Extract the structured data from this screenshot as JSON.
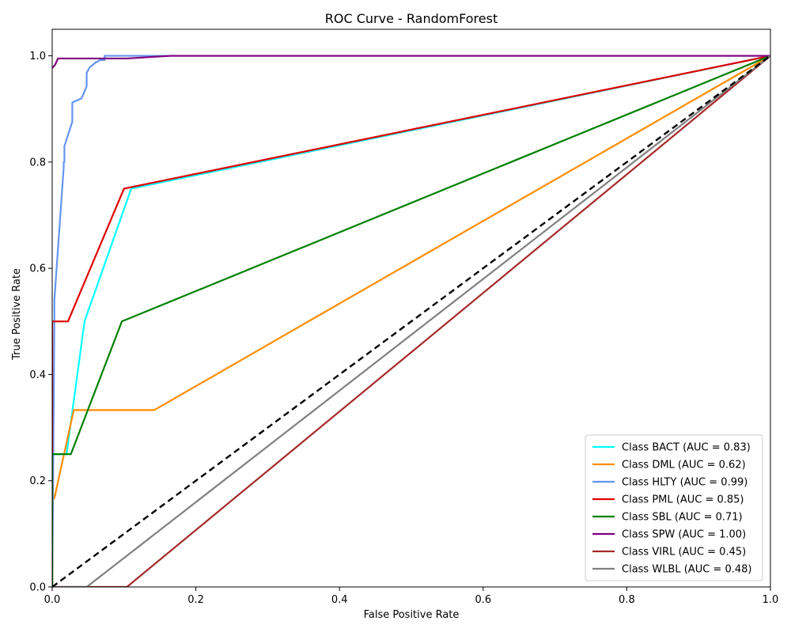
{
  "chart_data": {
    "type": "line",
    "title": "ROC Curve - RandomForest",
    "xlabel": "False Positive Rate",
    "ylabel": "True Positive Rate",
    "xlim": [
      0.0,
      1.0
    ],
    "ylim": [
      0.0,
      1.05
    ],
    "x_ticks": [
      "0.0",
      "0.2",
      "0.4",
      "0.6",
      "0.8",
      "1.0"
    ],
    "y_ticks": [
      "0.0",
      "0.2",
      "0.4",
      "0.6",
      "0.8",
      "1.0"
    ],
    "grid": false,
    "legend_position": "lower-right",
    "diagonal": {
      "x": [
        0,
        1
      ],
      "y": [
        0,
        1
      ],
      "color": "#000000",
      "style": "dashed"
    },
    "series": [
      {
        "name": "Class BACT (AUC = 0.83)",
        "color": "#00ffff",
        "x": [
          0.0,
          0.0,
          0.003,
          0.003,
          0.02,
          0.045,
          0.11,
          1.0
        ],
        "y": [
          0.0,
          0.25,
          0.25,
          0.25,
          0.25,
          0.5,
          0.75,
          1.0
        ]
      },
      {
        "name": "Class DML (AUC = 0.62)",
        "color": "#ff8c00",
        "x": [
          0.0,
          0.0,
          0.003,
          0.03,
          0.142,
          1.0
        ],
        "y": [
          0.0,
          0.167,
          0.167,
          0.333,
          0.333,
          1.0
        ]
      },
      {
        "name": "Class HLTY (AUC = 0.99)",
        "color": "#6495ed",
        "x": [
          0.0,
          0.003,
          0.003,
          0.016,
          0.016,
          0.017,
          0.017,
          0.028,
          0.028,
          0.041,
          0.048,
          0.048,
          0.052,
          0.061,
          0.067,
          0.073,
          0.073,
          0.083,
          1.0
        ],
        "y": [
          0.0,
          0.5,
          0.54,
          0.79,
          0.8,
          0.8,
          0.83,
          0.876,
          0.912,
          0.92,
          0.943,
          0.968,
          0.978,
          0.988,
          0.992,
          0.992,
          1.0,
          1.0,
          1.0
        ]
      },
      {
        "name": "Class PML (AUC = 0.85)",
        "color": "#e00000",
        "x": [
          0.0,
          0.0,
          0.003,
          0.022,
          0.1,
          1.0
        ],
        "y": [
          0.0,
          0.5,
          0.5,
          0.5,
          0.75,
          1.0
        ]
      },
      {
        "name": "Class SBL (AUC = 0.71)",
        "color": "#008000",
        "x": [
          0.0,
          0.0,
          0.003,
          0.026,
          0.097,
          1.0
        ],
        "y": [
          0.0,
          0.25,
          0.25,
          0.25,
          0.5,
          1.0
        ]
      },
      {
        "name": "Class SPW (AUC = 1.00)",
        "color": "#800080",
        "x": [
          0.0,
          0.004,
          0.008,
          0.104,
          0.165,
          1.0
        ],
        "y": [
          0.977,
          0.983,
          0.995,
          0.995,
          1.0,
          1.0
        ]
      },
      {
        "name": "Class VIRL (AUC = 0.45)",
        "color": "#a52a2a",
        "x": [
          0.0,
          0.104,
          1.0
        ],
        "y": [
          0.0,
          0.0,
          1.0
        ]
      },
      {
        "name": "Class WLBL (AUC = 0.48)",
        "color": "#808080",
        "x": [
          0.0,
          0.048,
          1.0
        ],
        "y": [
          0.0,
          0.0,
          1.0
        ]
      }
    ]
  }
}
